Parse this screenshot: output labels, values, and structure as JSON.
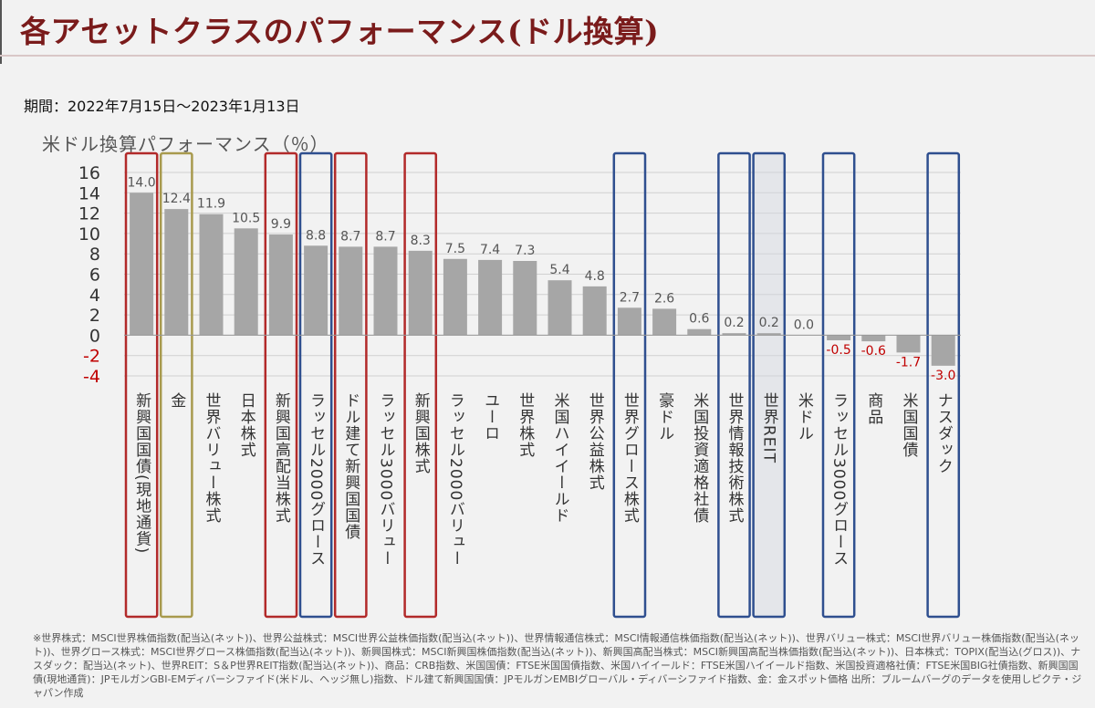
{
  "title": "各アセットクラスのパフォーマンス(ドル換算)",
  "period": "期間：2022年7月15日～2023年1月13日",
  "colors": {
    "bar": "#a6a6a6",
    "negative_tick": "#c00000",
    "red_box": "#b22a2a",
    "olive_box": "#a89a4e",
    "blue_box": "#2f4f8f",
    "grid": "#d0d0d0"
  },
  "chart_data": {
    "type": "bar",
    "ylabel": "米ドル換算パフォーマンス（％）",
    "ylim": [
      -4,
      16
    ],
    "yticks": [
      "16",
      "14",
      "12",
      "10",
      "8",
      "6",
      "4",
      "2",
      "0",
      "-2",
      "-4"
    ],
    "grid": true,
    "categories": [
      "新興国国債(現地通貨)",
      "金",
      "世界バリュー株式",
      "日本株式",
      "新興国高配当株式",
      "ラッセル2000グロース",
      "ドル建て新興国国債",
      "ラッセル3000バリュー",
      "新興国株式",
      "ラッセル2000バリュー",
      "ユーロ",
      "世界株式",
      "米国ハイイールド",
      "世界公益株式",
      "世界グロース株式",
      "豪ドル",
      "米国投資適格社債",
      "世界情報技術株式",
      "世界REIT",
      "米ドル",
      "ラッセル3000グロース",
      "商品",
      "米国国債",
      "ナスダック"
    ],
    "values": [
      14.0,
      12.4,
      11.9,
      10.5,
      9.9,
      8.8,
      8.7,
      8.7,
      8.3,
      7.5,
      7.4,
      7.3,
      5.4,
      4.8,
      2.7,
      2.6,
      0.6,
      0.2,
      0.2,
      0.0,
      -0.5,
      -0.6,
      -1.7,
      -3.0
    ],
    "value_labels": [
      "14.0",
      "12.4",
      "11.9",
      "10.5",
      "9.9",
      "8.8",
      "8.7",
      "8.7",
      "8.3",
      "7.5",
      "7.4",
      "7.3",
      "5.4",
      "4.8",
      "2.7",
      "2.6",
      "0.6",
      "0.2",
      "0.2",
      "0.0",
      "-0.5",
      "-0.6",
      "-1.7",
      "-3.0"
    ],
    "highlights": [
      "red",
      "olive",
      "",
      "",
      "red",
      "blue",
      "red",
      "",
      "red",
      "",
      "",
      "",
      "",
      "",
      "blue",
      "",
      "",
      "blue",
      "blue",
      "",
      "blue",
      "",
      "",
      "blue"
    ]
  },
  "footnote": "※世界株式：MSCI世界株価指数(配当込(ネット))、世界公益株式：MSCI世界公益株価指数(配当込(ネット))、世界情報通信株式：MSCI情報通信株価指数(配当込(ネット))、世界バリュー株式：MSCI世界バリュー株価指数(配当込(ネット))、世界グロース株式：MSCI世界グロース株価指数(配当込(ネット))、新興国株式：MSCI新興国株価指数(配当込(ネット))、新興国高配当株式：MSCI新興国高配当株価指数(配当込(ネット))、日本株式：TOPIX(配当込(グロス))、ナスダック：配当込(ネット)、世界REIT：S＆P世界REIT指数(配当込(ネット))、商品：CRB指数、米国国債：FTSE米国国債指数、米国ハイイールド：FTSE米国ハイイールド指数、米国投資適格社債：FTSE米国BIG社債指数、新興国国債(現地通貨)：JPモルガンGBI-EMディバーシファイド(米ドル、ヘッジ無し)指数、ドル建て新興国国債：JPモルガンEMBIグローバル・ディバーシファイド指数、金：金スポット価格 出所：ブルームバーグのデータを使用しピクテ・ジャパン作成"
}
